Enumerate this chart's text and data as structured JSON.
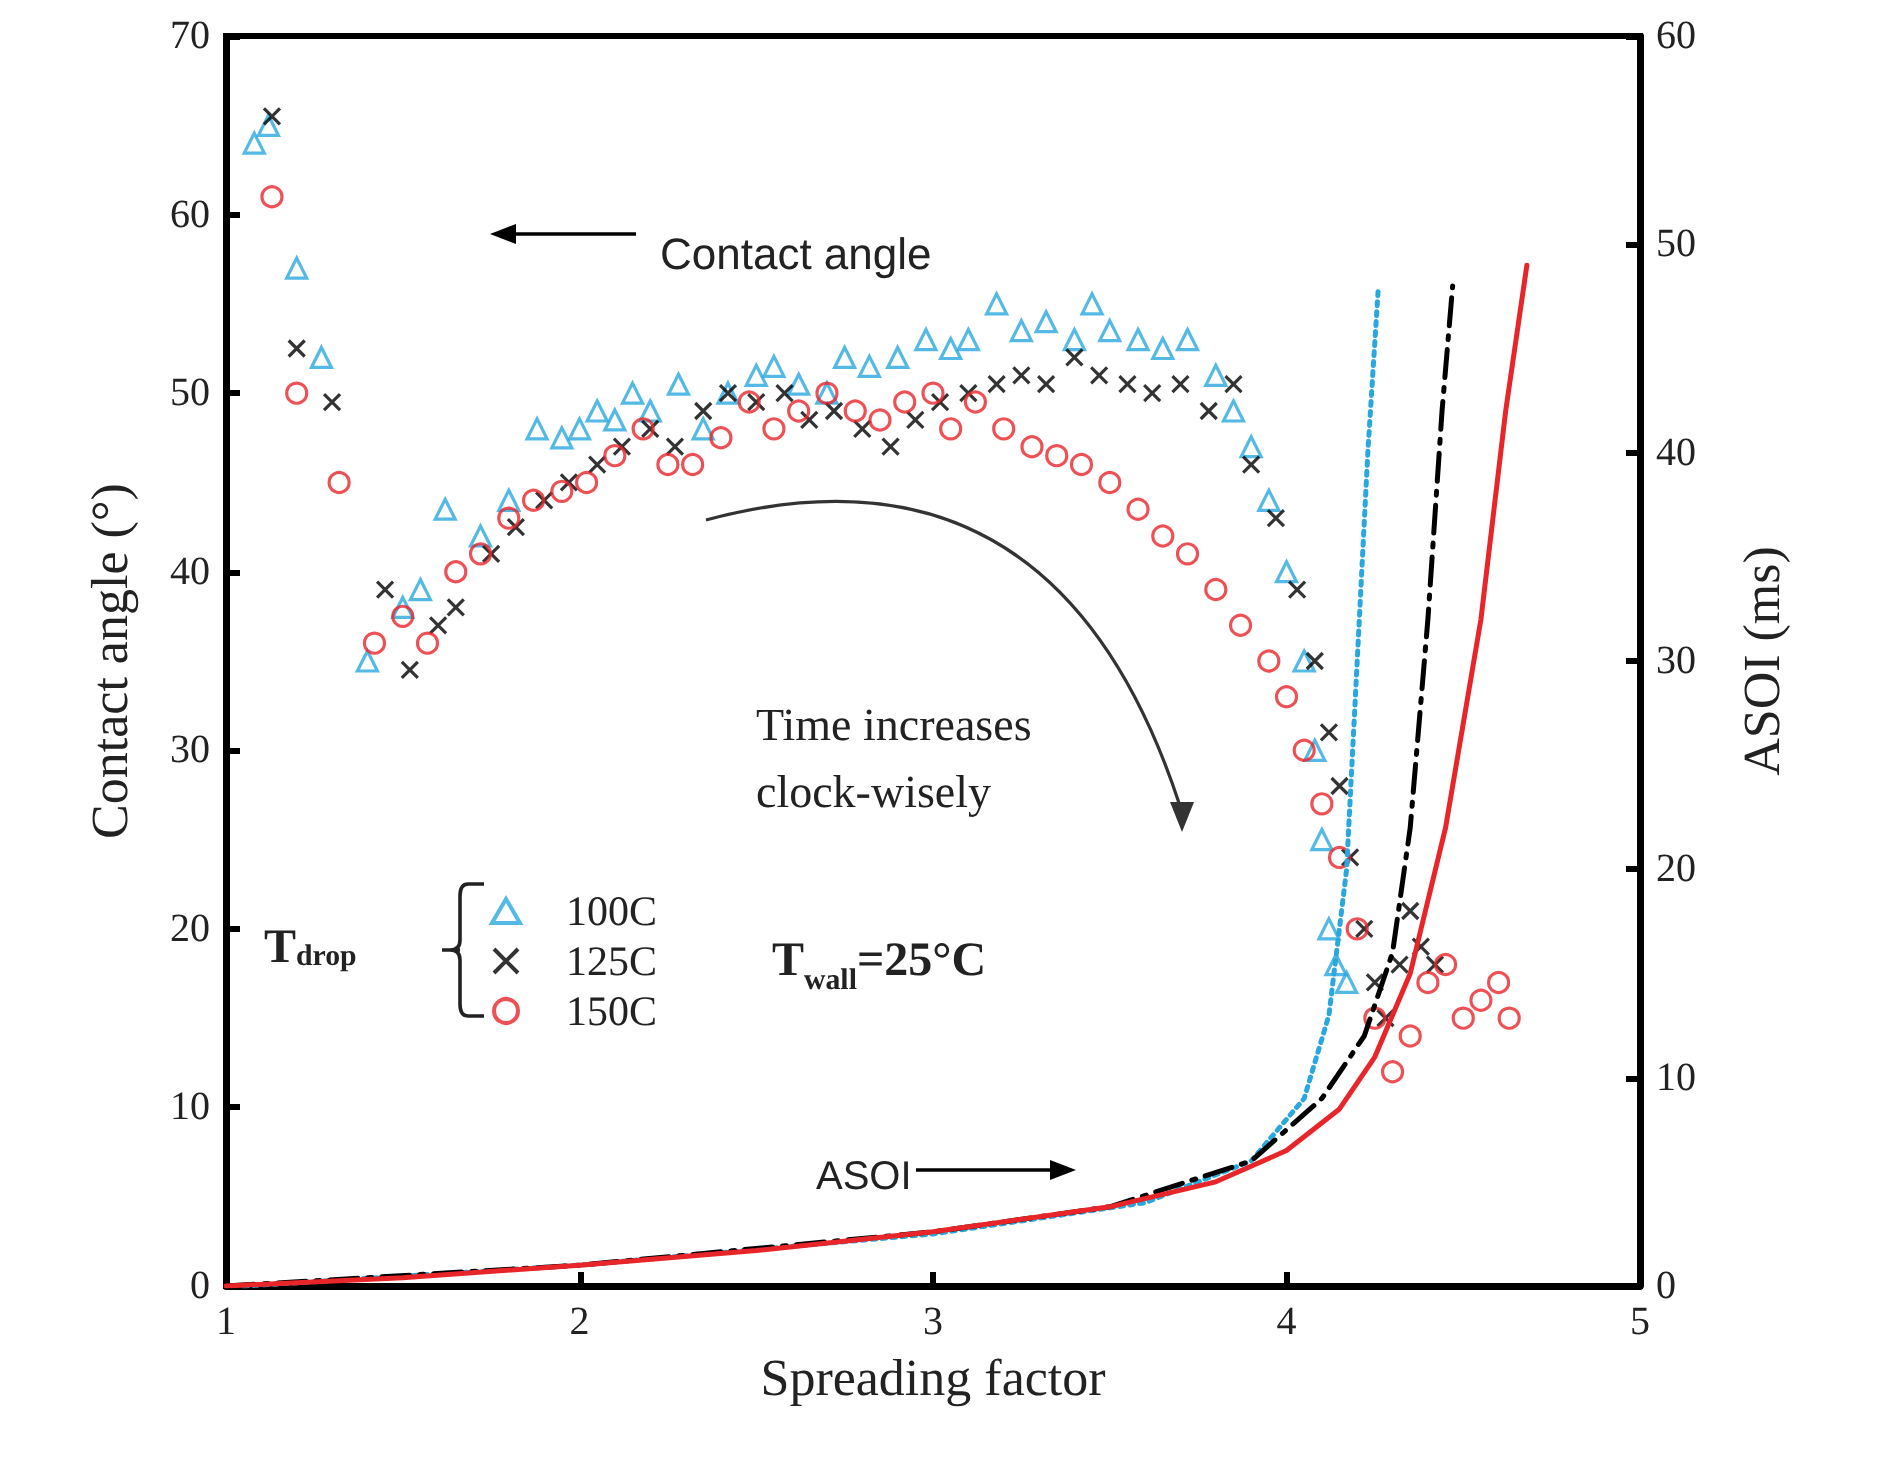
{
  "chart_data": {
    "type": "scatter",
    "xlabel": "Spreading factor",
    "ylabel": "Contact angle (°)",
    "y2label": "ASOI (ms)",
    "legend_title": "T$_{drop}$",
    "legend": "left",
    "xlim": [
      1,
      5
    ],
    "xticks": [
      1,
      2,
      3,
      4,
      5
    ],
    "ylim": [
      0,
      70
    ],
    "yticks": [
      0,
      10,
      20,
      30,
      40,
      50,
      60,
      70
    ],
    "y2lim": [
      0,
      60
    ],
    "y2ticks": [
      0,
      10,
      20,
      30,
      40,
      50,
      60
    ],
    "grid": false,
    "annotations": [
      "Contact angle",
      "Time increases clock-wisely",
      "T$_{wall}$=25°C",
      "ASOI"
    ],
    "series": [
      {
        "name": "100C",
        "color": "#29a8df",
        "marker": "triangle",
        "x": [
          1.08,
          1.12,
          1.2,
          1.27,
          1.4,
          1.5,
          1.55,
          1.62,
          1.72,
          1.8,
          1.88,
          1.95,
          2.0,
          2.05,
          2.1,
          2.15,
          2.2,
          2.28,
          2.35,
          2.42,
          2.5,
          2.55,
          2.62,
          2.7,
          2.75,
          2.82,
          2.9,
          2.98,
          3.05,
          3.1,
          3.18,
          3.25,
          3.32,
          3.4,
          3.45,
          3.5,
          3.58,
          3.65,
          3.72,
          3.8,
          3.85,
          3.9,
          3.95,
          4.0,
          4.05,
          4.08,
          4.1,
          4.12,
          4.14,
          4.17
        ],
        "values": [
          64,
          65,
          57,
          52,
          35,
          38,
          39,
          43.5,
          42,
          44,
          48,
          47.5,
          48,
          49,
          48.5,
          50,
          49,
          50.5,
          48,
          50,
          51,
          51.5,
          50.5,
          50,
          52,
          51.5,
          52,
          53,
          52.5,
          53,
          55,
          53.5,
          54,
          53,
          55,
          53.5,
          53,
          52.5,
          53,
          51,
          49,
          47,
          44,
          40,
          35,
          30,
          25,
          20,
          18,
          17
        ]
      },
      {
        "name": "125C",
        "color": "#000000",
        "marker": "cross",
        "x": [
          1.13,
          1.2,
          1.3,
          1.45,
          1.52,
          1.6,
          1.65,
          1.75,
          1.82,
          1.9,
          1.97,
          2.05,
          2.12,
          2.2,
          2.27,
          2.35,
          2.42,
          2.5,
          2.58,
          2.65,
          2.72,
          2.8,
          2.88,
          2.95,
          3.02,
          3.1,
          3.18,
          3.25,
          3.32,
          3.4,
          3.47,
          3.55,
          3.62,
          3.7,
          3.78,
          3.85,
          3.9,
          3.97,
          4.03,
          4.08,
          4.12,
          4.15,
          4.18,
          4.22,
          4.25,
          4.28,
          4.32,
          4.35,
          4.38,
          4.42
        ],
        "values": [
          65.5,
          52.5,
          49.5,
          39,
          34.5,
          37,
          38,
          41,
          42.5,
          44,
          45,
          46,
          47,
          48,
          47,
          49,
          50,
          49.5,
          50,
          48.5,
          49,
          48,
          47,
          48.5,
          49.5,
          50,
          50.5,
          51,
          50.5,
          52,
          51,
          50.5,
          50,
          50.5,
          49,
          50.5,
          46,
          43,
          39,
          35,
          31,
          28,
          24,
          20,
          17,
          15,
          18,
          21,
          19,
          18
        ]
      },
      {
        "name": "150C",
        "color": "#e8262a",
        "marker": "circle",
        "x": [
          1.13,
          1.2,
          1.32,
          1.42,
          1.5,
          1.57,
          1.65,
          1.72,
          1.8,
          1.87,
          1.95,
          2.02,
          2.1,
          2.18,
          2.25,
          2.32,
          2.4,
          2.48,
          2.55,
          2.62,
          2.7,
          2.78,
          2.85,
          2.92,
          3.0,
          3.05,
          3.12,
          3.2,
          3.28,
          3.35,
          3.42,
          3.5,
          3.58,
          3.65,
          3.72,
          3.8,
          3.87,
          3.95,
          4.0,
          4.05,
          4.1,
          4.15,
          4.2,
          4.25,
          4.3,
          4.35,
          4.4,
          4.45,
          4.5,
          4.55,
          4.6,
          4.63
        ],
        "values": [
          61,
          50,
          45,
          36,
          37.5,
          36,
          40,
          41,
          43,
          44,
          44.5,
          45,
          46.5,
          48,
          46,
          46,
          47.5,
          49.5,
          48,
          49,
          50,
          49,
          48.5,
          49.5,
          50,
          48,
          49.5,
          48,
          47,
          46.5,
          46,
          45,
          43.5,
          42,
          41,
          39,
          37,
          35,
          33,
          30,
          27,
          24,
          20,
          15,
          12,
          14,
          17,
          18,
          15,
          16,
          17,
          15
        ]
      },
      {
        "type": "line",
        "axis": "y2",
        "color": "#29a8df",
        "line_style": "dotted",
        "x": [
          1.05,
          2,
          3,
          3.6,
          3.9,
          4.05,
          4.12,
          4.17,
          4.2,
          4.23,
          4.26
        ],
        "values": [
          0,
          1,
          2.5,
          4,
          6,
          9,
          13,
          20,
          30,
          40,
          48
        ]
      },
      {
        "type": "line",
        "axis": "y2",
        "color": "#000000",
        "line_style": "dashed",
        "x": [
          1,
          2,
          3,
          3.5,
          3.9,
          4.1,
          4.22,
          4.3,
          4.35,
          4.4,
          4.44,
          4.47
        ],
        "values": [
          0,
          1,
          2.6,
          3.8,
          6,
          9,
          12,
          16,
          22,
          32,
          42,
          48
        ]
      },
      {
        "type": "line",
        "axis": "y2",
        "color": "#e8262a",
        "line_style": "solid",
        "x": [
          1,
          1.5,
          2,
          2.5,
          3,
          3.5,
          3.8,
          4.0,
          4.15,
          4.25,
          4.35,
          4.45,
          4.55,
          4.62,
          4.68
        ],
        "values": [
          0,
          0.4,
          1,
          1.7,
          2.6,
          3.8,
          5,
          6.5,
          8.5,
          11,
          15,
          22,
          32,
          42,
          49
        ]
      }
    ]
  }
}
